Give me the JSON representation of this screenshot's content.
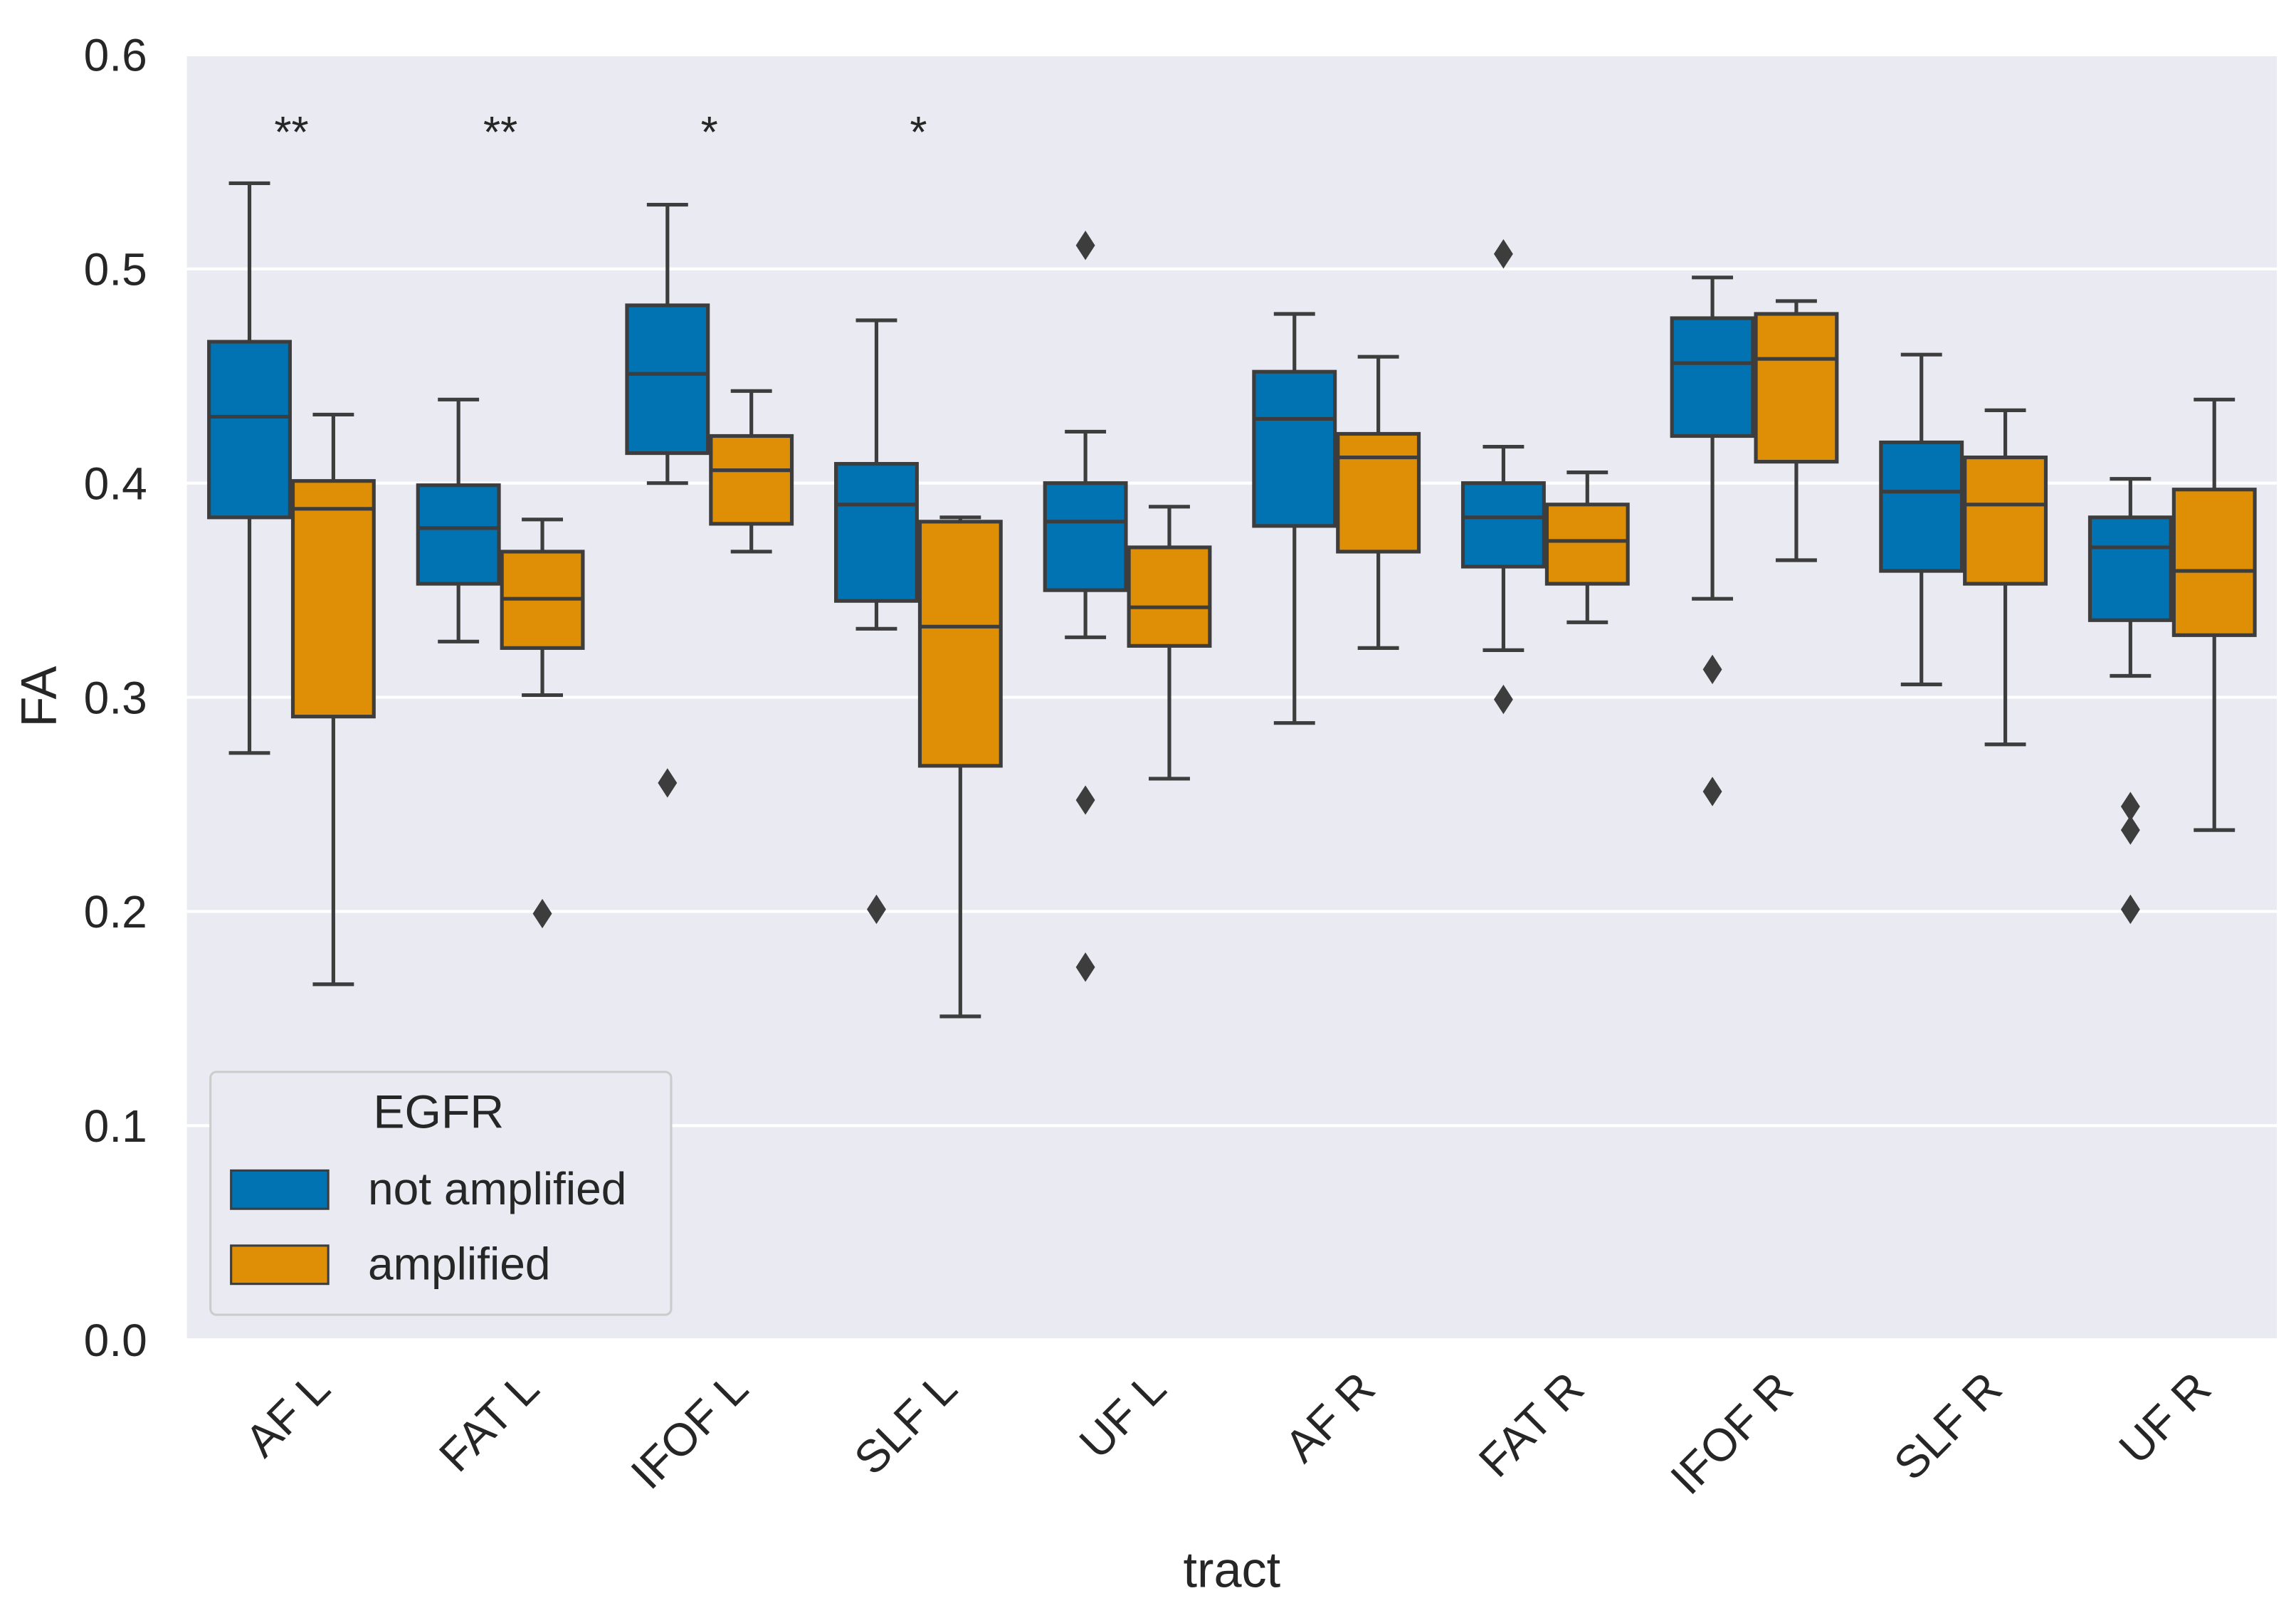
{
  "chart_data": {
    "type": "box",
    "title": "",
    "xlabel": "tract",
    "ylabel": "FA",
    "ylim": [
      0.0,
      0.6
    ],
    "yticks": [
      "0.0",
      "0.1",
      "0.2",
      "0.3",
      "0.4",
      "0.5",
      "0.6"
    ],
    "grid": true,
    "categories": [
      "AF L",
      "FAT L",
      "IFOF L",
      "SLF L",
      "UF L",
      "AF R",
      "FAT R",
      "IFOF R",
      "SLF R",
      "UF R"
    ],
    "significance": [
      "**",
      "**",
      "*",
      "*",
      "",
      "",
      "",
      "",
      "",
      ""
    ],
    "legend": {
      "title": "EGFR",
      "placement": "bottom-left",
      "entries": [
        "not amplified",
        "amplified"
      ]
    },
    "colors": {
      "not amplified": "#0173b2",
      "amplified": "#de8f05",
      "background": "#eaeaf2"
    },
    "series": [
      {
        "name": "not amplified",
        "boxes": [
          {
            "whislo": 0.274,
            "q1": 0.384,
            "med": 0.431,
            "q3": 0.466,
            "whishi": 0.54,
            "fliers": []
          },
          {
            "whislo": 0.326,
            "q1": 0.353,
            "med": 0.379,
            "q3": 0.399,
            "whishi": 0.439,
            "fliers": []
          },
          {
            "whislo": 0.4,
            "q1": 0.414,
            "med": 0.451,
            "q3": 0.483,
            "whishi": 0.53,
            "fliers": [
              0.26
            ]
          },
          {
            "whislo": 0.332,
            "q1": 0.345,
            "med": 0.39,
            "q3": 0.409,
            "whishi": 0.476,
            "fliers": [
              0.201
            ]
          },
          {
            "whislo": 0.328,
            "q1": 0.35,
            "med": 0.382,
            "q3": 0.4,
            "whishi": 0.424,
            "fliers": [
              0.511,
              0.252,
              0.174
            ]
          },
          {
            "whislo": 0.288,
            "q1": 0.38,
            "med": 0.43,
            "q3": 0.452,
            "whishi": 0.479,
            "fliers": []
          },
          {
            "whislo": 0.322,
            "q1": 0.361,
            "med": 0.384,
            "q3": 0.4,
            "whishi": 0.417,
            "fliers": [
              0.507,
              0.299
            ]
          },
          {
            "whislo": 0.346,
            "q1": 0.422,
            "med": 0.456,
            "q3": 0.477,
            "whishi": 0.496,
            "fliers": [
              0.313,
              0.256
            ]
          },
          {
            "whislo": 0.306,
            "q1": 0.359,
            "med": 0.396,
            "q3": 0.419,
            "whishi": 0.46,
            "fliers": []
          },
          {
            "whislo": 0.31,
            "q1": 0.336,
            "med": 0.37,
            "q3": 0.384,
            "whishi": 0.402,
            "fliers": [
              0.249,
              0.238,
              0.201
            ]
          }
        ]
      },
      {
        "name": "amplified",
        "boxes": [
          {
            "whislo": 0.166,
            "q1": 0.291,
            "med": 0.388,
            "q3": 0.401,
            "whishi": 0.432,
            "fliers": []
          },
          {
            "whislo": 0.301,
            "q1": 0.323,
            "med": 0.346,
            "q3": 0.368,
            "whishi": 0.383,
            "fliers": [
              0.199
            ]
          },
          {
            "whislo": 0.368,
            "q1": 0.381,
            "med": 0.406,
            "q3": 0.422,
            "whishi": 0.443,
            "fliers": []
          },
          {
            "whislo": 0.151,
            "q1": 0.268,
            "med": 0.333,
            "q3": 0.382,
            "whishi": 0.384,
            "fliers": []
          },
          {
            "whislo": 0.262,
            "q1": 0.324,
            "med": 0.342,
            "q3": 0.37,
            "whishi": 0.389,
            "fliers": []
          },
          {
            "whislo": 0.323,
            "q1": 0.368,
            "med": 0.412,
            "q3": 0.423,
            "whishi": 0.459,
            "fliers": []
          },
          {
            "whislo": 0.335,
            "q1": 0.353,
            "med": 0.373,
            "q3": 0.39,
            "whishi": 0.405,
            "fliers": []
          },
          {
            "whislo": 0.364,
            "q1": 0.41,
            "med": 0.458,
            "q3": 0.479,
            "whishi": 0.485,
            "fliers": []
          },
          {
            "whislo": 0.278,
            "q1": 0.353,
            "med": 0.39,
            "q3": 0.412,
            "whishi": 0.434,
            "fliers": []
          },
          {
            "whislo": 0.238,
            "q1": 0.329,
            "med": 0.359,
            "q3": 0.397,
            "whishi": 0.439,
            "fliers": []
          }
        ]
      }
    ]
  }
}
